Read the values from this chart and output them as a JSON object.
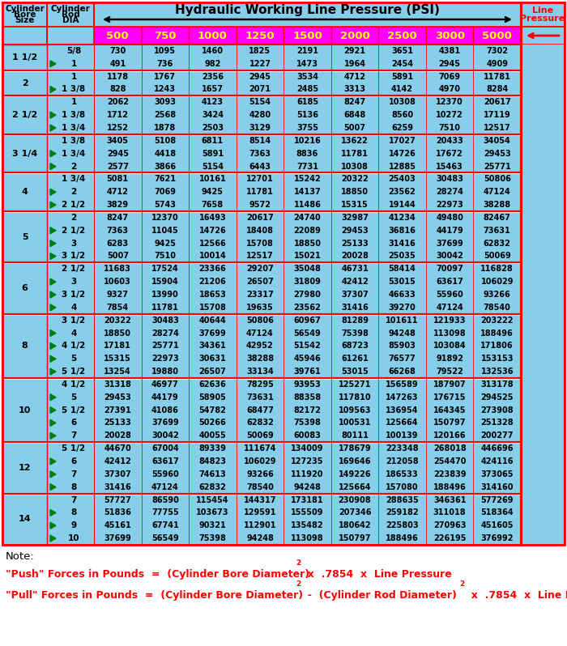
{
  "title": "Hydraulic Working Line Pressure (PSI)",
  "col_headers": [
    "500",
    "750",
    "1000",
    "1250",
    "1500",
    "2000",
    "2500",
    "3000",
    "5000"
  ],
  "rows": [
    {
      "bore": "1 1/2",
      "rod": "5/8",
      "vals": [
        730,
        1095,
        1460,
        1825,
        2191,
        2921,
        3651,
        4381,
        7302
      ]
    },
    {
      "bore": "",
      "rod": "1",
      "vals": [
        491,
        736,
        982,
        1227,
        1473,
        1964,
        2454,
        2945,
        4909
      ]
    },
    {
      "bore": "2",
      "rod": "1",
      "vals": [
        1178,
        1767,
        2356,
        2945,
        3534,
        4712,
        5891,
        7069,
        11781
      ]
    },
    {
      "bore": "",
      "rod": "1 3/8",
      "vals": [
        828,
        1243,
        1657,
        2071,
        2485,
        3313,
        4142,
        4970,
        8284
      ]
    },
    {
      "bore": "2 1/2",
      "rod": "1",
      "vals": [
        2062,
        3093,
        4123,
        5154,
        6185,
        8247,
        10308,
        12370,
        20617
      ]
    },
    {
      "bore": "",
      "rod": "1 3/8",
      "vals": [
        1712,
        2568,
        3424,
        4280,
        5136,
        6848,
        8560,
        10272,
        17119
      ]
    },
    {
      "bore": "",
      "rod": "1 3/4",
      "vals": [
        1252,
        1878,
        2503,
        3129,
        3755,
        5007,
        6259,
        7510,
        12517
      ]
    },
    {
      "bore": "3 1/4",
      "rod": "1 3/8",
      "vals": [
        3405,
        5108,
        6811,
        8514,
        10216,
        13622,
        17027,
        20433,
        34054
      ]
    },
    {
      "bore": "",
      "rod": "1 3/4",
      "vals": [
        2945,
        4418,
        5891,
        7363,
        8836,
        11781,
        14726,
        17672,
        29453
      ]
    },
    {
      "bore": "",
      "rod": "2",
      "vals": [
        2577,
        3866,
        5154,
        6443,
        7731,
        10308,
        12885,
        15463,
        25771
      ]
    },
    {
      "bore": "4",
      "rod": "1 3/4",
      "vals": [
        5081,
        7621,
        10161,
        12701,
        15242,
        20322,
        25403,
        30483,
        50806
      ]
    },
    {
      "bore": "",
      "rod": "2",
      "vals": [
        4712,
        7069,
        9425,
        11781,
        14137,
        18850,
        23562,
        28274,
        47124
      ]
    },
    {
      "bore": "",
      "rod": "2 1/2",
      "vals": [
        3829,
        5743,
        7658,
        9572,
        11486,
        15315,
        19144,
        22973,
        38288
      ]
    },
    {
      "bore": "5",
      "rod": "2",
      "vals": [
        8247,
        12370,
        16493,
        20617,
        24740,
        32987,
        41234,
        49480,
        82467
      ]
    },
    {
      "bore": "",
      "rod": "2 1/2",
      "vals": [
        7363,
        11045,
        14726,
        18408,
        22089,
        29453,
        36816,
        44179,
        73631
      ]
    },
    {
      "bore": "",
      "rod": "3",
      "vals": [
        6283,
        9425,
        12566,
        15708,
        18850,
        25133,
        31416,
        37699,
        62832
      ]
    },
    {
      "bore": "",
      "rod": "3 1/2",
      "vals": [
        5007,
        7510,
        10014,
        12517,
        15021,
        20028,
        25035,
        30042,
        50069
      ]
    },
    {
      "bore": "6",
      "rod": "2 1/2",
      "vals": [
        11683,
        17524,
        23366,
        29207,
        35048,
        46731,
        58414,
        70097,
        116828
      ]
    },
    {
      "bore": "",
      "rod": "3",
      "vals": [
        10603,
        15904,
        21206,
        26507,
        31809,
        42412,
        53015,
        63617,
        106029
      ]
    },
    {
      "bore": "",
      "rod": "3 1/2",
      "vals": [
        9327,
        13990,
        18653,
        23317,
        27980,
        37307,
        46633,
        55960,
        93266
      ]
    },
    {
      "bore": "",
      "rod": "4",
      "vals": [
        7854,
        11781,
        15708,
        19635,
        23562,
        31416,
        39270,
        47124,
        78540
      ]
    },
    {
      "bore": "8",
      "rod": "3 1/2",
      "vals": [
        20322,
        30483,
        40644,
        50806,
        60967,
        81289,
        101611,
        121933,
        203222
      ]
    },
    {
      "bore": "",
      "rod": "4",
      "vals": [
        18850,
        28274,
        37699,
        47124,
        56549,
        75398,
        94248,
        113098,
        188496
      ]
    },
    {
      "bore": "",
      "rod": "4 1/2",
      "vals": [
        17181,
        25771,
        34361,
        42952,
        51542,
        68723,
        85903,
        103084,
        171806
      ]
    },
    {
      "bore": "",
      "rod": "5",
      "vals": [
        15315,
        22973,
        30631,
        38288,
        45946,
        61261,
        76577,
        91892,
        153153
      ]
    },
    {
      "bore": "",
      "rod": "5 1/2",
      "vals": [
        13254,
        19880,
        26507,
        33134,
        39761,
        53015,
        66268,
        79522,
        132536
      ]
    },
    {
      "bore": "10",
      "rod": "4 1/2",
      "vals": [
        31318,
        46977,
        62636,
        78295,
        93953,
        125271,
        156589,
        187907,
        313178
      ]
    },
    {
      "bore": "",
      "rod": "5",
      "vals": [
        29453,
        44179,
        58905,
        73631,
        88358,
        117810,
        147263,
        176715,
        294525
      ]
    },
    {
      "bore": "",
      "rod": "5 1/2",
      "vals": [
        27391,
        41086,
        54782,
        68477,
        82172,
        109563,
        136954,
        164345,
        273908
      ]
    },
    {
      "bore": "",
      "rod": "6",
      "vals": [
        25133,
        37699,
        50266,
        62832,
        75398,
        100531,
        125664,
        150797,
        251328
      ]
    },
    {
      "bore": "",
      "rod": "7",
      "vals": [
        20028,
        30042,
        40055,
        50069,
        60083,
        80111,
        100139,
        120166,
        200277
      ]
    },
    {
      "bore": "12",
      "rod": "5 1/2",
      "vals": [
        44670,
        67004,
        89339,
        111674,
        134009,
        178679,
        223348,
        268018,
        446696
      ]
    },
    {
      "bore": "",
      "rod": "6",
      "vals": [
        42412,
        63617,
        84823,
        106029,
        127235,
        169646,
        212058,
        254470,
        424116
      ]
    },
    {
      "bore": "",
      "rod": "7",
      "vals": [
        37307,
        55960,
        74613,
        93266,
        111920,
        149226,
        186533,
        223839,
        373065
      ]
    },
    {
      "bore": "",
      "rod": "8",
      "vals": [
        31416,
        47124,
        62832,
        78540,
        94248,
        125664,
        157080,
        188496,
        314160
      ]
    },
    {
      "bore": "14",
      "rod": "7",
      "vals": [
        57727,
        86590,
        115454,
        144317,
        173181,
        230908,
        288635,
        346361,
        577269
      ]
    },
    {
      "bore": "",
      "rod": "8",
      "vals": [
        51836,
        77755,
        103673,
        129591,
        155509,
        207346,
        259182,
        311018,
        518364
      ]
    },
    {
      "bore": "",
      "rod": "9",
      "vals": [
        45161,
        67741,
        90321,
        112901,
        135482,
        180642,
        225803,
        270963,
        451605
      ]
    },
    {
      "bore": "",
      "rod": "10",
      "vals": [
        37699,
        56549,
        75398,
        94248,
        113098,
        150797,
        188496,
        226195,
        376992
      ]
    }
  ],
  "bg_color": "#87CEEB",
  "header_bg": "#FF00FF",
  "header_text_color": "#FFFF00",
  "border_color": "#FF0000",
  "formula_color": "#FF0000",
  "white_sep_color": "#FFFFFF"
}
